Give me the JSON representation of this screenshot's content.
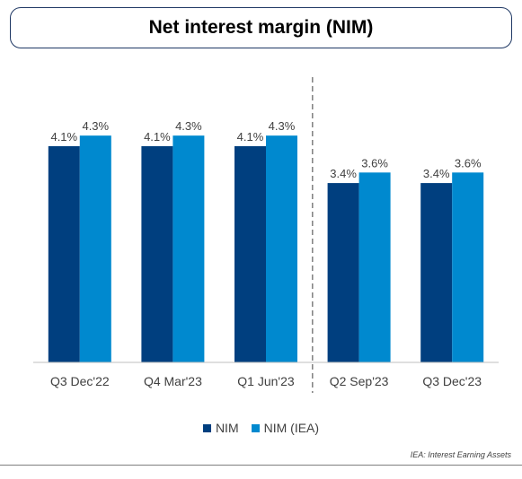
{
  "chart_data": {
    "type": "bar",
    "title": "Net interest margin (NIM)",
    "categories": [
      "Q3 Dec'22",
      "Q4 Mar'23",
      "Q1 Jun'23",
      "Q2 Sep'23",
      "Q3 Dec'23"
    ],
    "series": [
      {
        "name": "NIM",
        "values": [
          4.1,
          4.1,
          4.1,
          3.4,
          3.4
        ],
        "labels": [
          "4.1%",
          "4.1%",
          "4.1%",
          "3.4%",
          "3.4%"
        ],
        "color": "#003f7f"
      },
      {
        "name": "NIM (IEA)",
        "values": [
          4.3,
          4.3,
          4.3,
          3.6,
          3.6
        ],
        "labels": [
          "4.3%",
          "4.3%",
          "4.3%",
          "3.6%",
          "3.6%"
        ],
        "color": "#0089cf"
      }
    ],
    "ylim": [
      0,
      5.0
    ],
    "xlabel": "",
    "ylabel": "",
    "grid": false,
    "legend_position": "bottom-center",
    "divider_after_category": 2,
    "footnote": "IEA: Interest Earning Assets"
  }
}
